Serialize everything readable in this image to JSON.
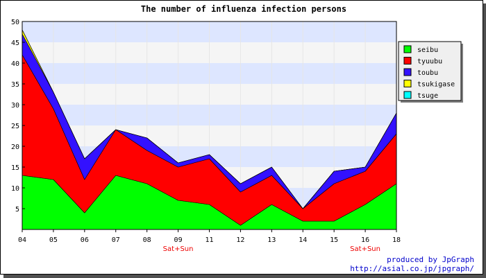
{
  "chart_data": {
    "type": "area",
    "stacked": true,
    "title": "The number of influenza infection persons",
    "categories": [
      "04",
      "05",
      "06",
      "07",
      "08",
      "09",
      "11",
      "12",
      "13",
      "14",
      "15",
      "16",
      "18"
    ],
    "sublabels": [
      "",
      "",
      "",
      "",
      "",
      "Sat+Sun",
      "",
      "",
      "",
      "",
      "",
      "Sat+Sun",
      ""
    ],
    "ylim": [
      0,
      50
    ],
    "yticks": [
      5,
      10,
      15,
      20,
      25,
      30,
      35,
      40,
      45,
      50
    ],
    "grid": true,
    "legend_position": "right",
    "series": [
      {
        "name": "seibu",
        "color": "#00ff00",
        "values": [
          13,
          12,
          4,
          13,
          11,
          7,
          6,
          1,
          6,
          2,
          2,
          6,
          11
        ]
      },
      {
        "name": "tyuubu",
        "color": "#ff0000",
        "values": [
          29,
          17,
          8,
          11,
          8,
          8,
          11,
          8,
          7,
          3,
          9,
          8,
          12
        ]
      },
      {
        "name": "toubu",
        "color": "#3311ff",
        "values": [
          5,
          4,
          5,
          0,
          3,
          1,
          1,
          2,
          2,
          0,
          3,
          1,
          5
        ]
      },
      {
        "name": "tsukigase",
        "color": "#ffff00",
        "values": [
          1,
          0,
          0,
          0,
          0,
          0,
          0,
          0,
          0,
          0,
          0,
          0,
          0
        ]
      },
      {
        "name": "tsuge",
        "color": "#00ffff",
        "values": [
          0,
          0,
          0,
          0,
          0,
          0,
          0,
          0,
          0,
          0,
          0,
          0,
          0
        ]
      }
    ]
  },
  "credits": {
    "line1": "produced by JpGraph",
    "line2": "http://asial.co.jp/jpgraph/"
  }
}
